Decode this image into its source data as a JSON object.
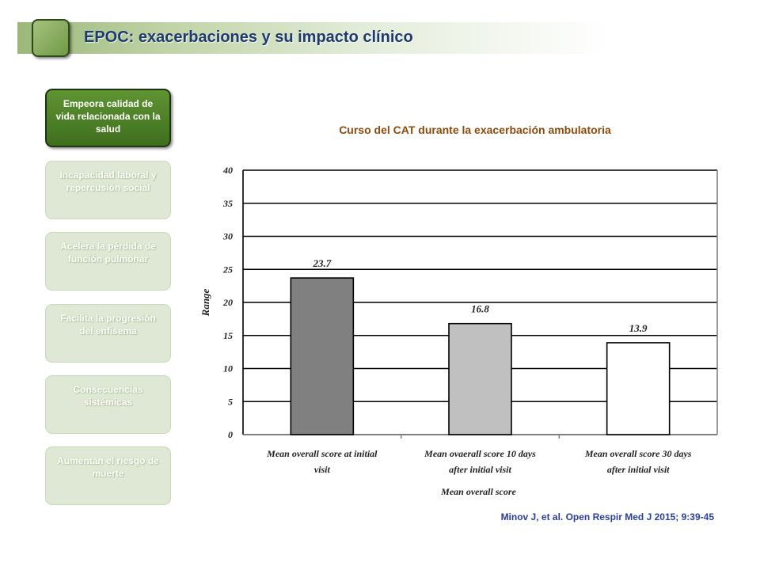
{
  "header": {
    "title": "EPOC: exacerbaciones y su impacto clínico"
  },
  "sidebar": {
    "items": [
      {
        "label": "Empeora calidad de vida relacionada con la salud",
        "active": true
      },
      {
        "label": "Incapacidad laboral y repercusión social",
        "active": false
      },
      {
        "label": "Acelera la pérdida de función pulmonar",
        "active": false
      },
      {
        "label": "Facilita la progresión del enfisema",
        "active": false
      },
      {
        "label": "Consecuencias sistémicas",
        "active": false
      },
      {
        "label": "Aumentan el riesgo de muerte",
        "active": false
      }
    ]
  },
  "chart_data": {
    "type": "bar",
    "title": "Curso del CAT durante la exacerbación ambulatoria",
    "xlabel": "Mean overall score",
    "ylabel": "Range",
    "ylim": [
      0,
      40
    ],
    "yticks": [
      "0",
      "5",
      "10",
      "15",
      "20",
      "25",
      "30",
      "35",
      "40"
    ],
    "grid": true,
    "categories": [
      [
        "Mean overall score at initial",
        "visit"
      ],
      [
        "Mean ovaerall score 10 days",
        "after initial visit"
      ],
      [
        "Mean overall score 30 days",
        "after initial visit"
      ]
    ],
    "values": [
      23.7,
      16.8,
      13.9
    ],
    "value_labels": [
      "23.7",
      "16.8",
      "13.9"
    ],
    "bar_colors": [
      "#808080",
      "#c0c0c0",
      "#ffffff"
    ]
  },
  "citation": "Minov J, et al. Open Respir Med J 2015; 9:39-45"
}
